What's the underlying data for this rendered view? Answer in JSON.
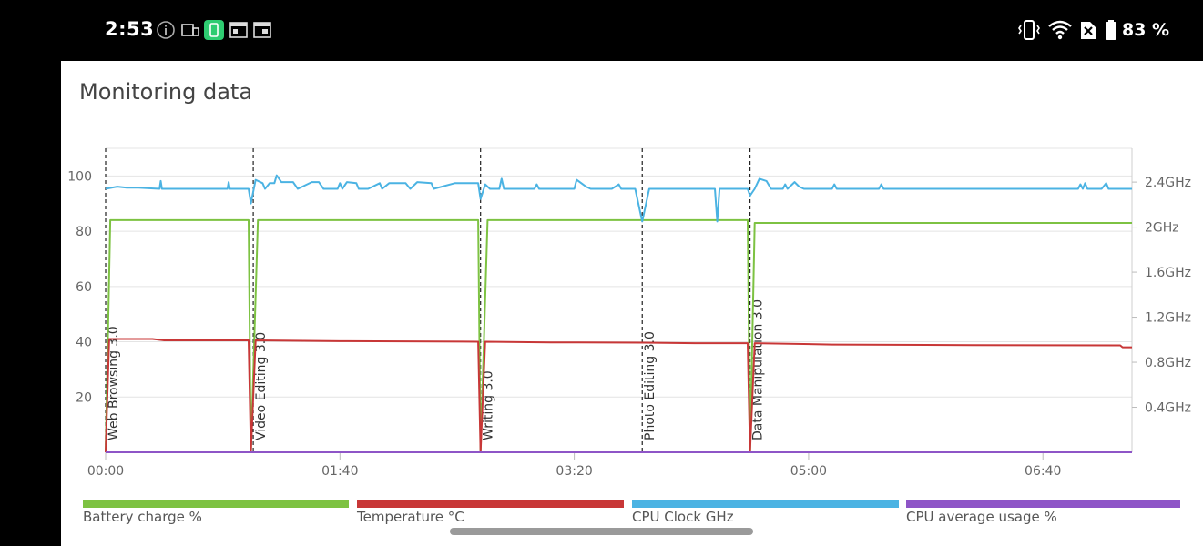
{
  "status_bar": {
    "time": "2:53",
    "battery_percent": "83 %",
    "notification_icons": [
      "info-icon",
      "cast-icon",
      "battery-app-icon",
      "calendar-icon",
      "calendar-icon"
    ],
    "system_icons": [
      "vibrate-icon",
      "wifi-icon",
      "no-sim-icon",
      "battery-icon"
    ]
  },
  "card": {
    "title": "Monitoring data"
  },
  "chart_data": {
    "type": "line",
    "title": "",
    "x_ticks": [
      "00:00",
      "01:40",
      "03:20",
      "05:00",
      "06:40"
    ],
    "x_range_minutes": [
      0,
      438
    ],
    "y_left_ticks": [
      "100",
      "80",
      "60",
      "40",
      "20"
    ],
    "y_left_range": [
      0,
      110
    ],
    "y_right_ticks": [
      "2.4GHz",
      "2GHz",
      "1.6GHz",
      "1.2GHz",
      "0.8GHz",
      "0.4GHz"
    ],
    "y_right_range": [
      0,
      2.7
    ],
    "grid": true,
    "legend_placement": "bottom",
    "events": [
      {
        "label": "Web Browsing 3.0",
        "x": 0
      },
      {
        "label": "Video Editing 3.0",
        "x": 63
      },
      {
        "label": "Writing 3.0",
        "x": 160
      },
      {
        "label": "Photo Editing 3.0",
        "x": 229
      },
      {
        "label": "Data Manipulation 3.0",
        "x": 275
      }
    ],
    "series": [
      {
        "name": "Battery charge %",
        "color": "#7dc242",
        "axis": "left",
        "points": [
          [
            0,
            0
          ],
          [
            2,
            84
          ],
          [
            61,
            84
          ],
          [
            62,
            0
          ],
          [
            65,
            84
          ],
          [
            159,
            84
          ],
          [
            160,
            0
          ],
          [
            163,
            84
          ],
          [
            274,
            84
          ],
          [
            275,
            0
          ],
          [
            277,
            83
          ],
          [
            438,
            83
          ]
        ]
      },
      {
        "name": "Temperature °C",
        "color": "#c83737",
        "axis": "left",
        "points": [
          [
            0,
            0
          ],
          [
            1.5,
            41
          ],
          [
            20,
            41
          ],
          [
            25,
            40.5
          ],
          [
            61,
            40.5
          ],
          [
            62,
            0
          ],
          [
            64,
            40.5
          ],
          [
            100,
            40.2
          ],
          [
            159,
            40
          ],
          [
            160,
            0
          ],
          [
            162,
            40
          ],
          [
            190,
            39.8
          ],
          [
            229,
            39.7
          ],
          [
            252,
            39.5
          ],
          [
            274,
            39.5
          ],
          [
            275,
            0
          ],
          [
            277,
            39.5
          ],
          [
            310,
            39
          ],
          [
            370,
            38.8
          ],
          [
            433,
            38.7
          ],
          [
            434,
            38
          ],
          [
            438,
            38
          ]
        ]
      },
      {
        "name": "CPU Clock GHz",
        "color": "#4bb3e3",
        "axis": "right",
        "points": [
          [
            0,
            2.34
          ],
          [
            5,
            2.36
          ],
          [
            9,
            2.35
          ],
          [
            14,
            2.35
          ],
          [
            23,
            2.34
          ],
          [
            23.5,
            2.41
          ],
          [
            24,
            2.34
          ],
          [
            52,
            2.34
          ],
          [
            52.5,
            2.4
          ],
          [
            53,
            2.34
          ],
          [
            61,
            2.34
          ],
          [
            62,
            2.21
          ],
          [
            64,
            2.42
          ],
          [
            67,
            2.39
          ],
          [
            68,
            2.34
          ],
          [
            70,
            2.39
          ],
          [
            72,
            2.39
          ],
          [
            73,
            2.46
          ],
          [
            75,
            2.4
          ],
          [
            80,
            2.4
          ],
          [
            82,
            2.34
          ],
          [
            88,
            2.4
          ],
          [
            91,
            2.4
          ],
          [
            93,
            2.34
          ],
          [
            99,
            2.34
          ],
          [
            100,
            2.39
          ],
          [
            101,
            2.34
          ],
          [
            103,
            2.4
          ],
          [
            107,
            2.39
          ],
          [
            108,
            2.34
          ],
          [
            112,
            2.34
          ],
          [
            117,
            2.39
          ],
          [
            118,
            2.34
          ],
          [
            121,
            2.39
          ],
          [
            128,
            2.39
          ],
          [
            130,
            2.34
          ],
          [
            133,
            2.4
          ],
          [
            139,
            2.39
          ],
          [
            140,
            2.34
          ],
          [
            149,
            2.39
          ],
          [
            159,
            2.39
          ],
          [
            160,
            2.25
          ],
          [
            162,
            2.38
          ],
          [
            164,
            2.34
          ],
          [
            168,
            2.34
          ],
          [
            169,
            2.43
          ],
          [
            170,
            2.34
          ],
          [
            183,
            2.34
          ],
          [
            184,
            2.38
          ],
          [
            185,
            2.34
          ],
          [
            200,
            2.34
          ],
          [
            201,
            2.42
          ],
          [
            205,
            2.36
          ],
          [
            207,
            2.34
          ],
          [
            216,
            2.34
          ],
          [
            219,
            2.38
          ],
          [
            220,
            2.34
          ],
          [
            226,
            2.34
          ],
          [
            229,
            2.05
          ],
          [
            232,
            2.34
          ],
          [
            260,
            2.34
          ],
          [
            261,
            2.05
          ],
          [
            262,
            2.34
          ],
          [
            272,
            2.34
          ],
          [
            274,
            2.34
          ],
          [
            275,
            2.28
          ],
          [
            277,
            2.34
          ],
          [
            279,
            2.43
          ],
          [
            282,
            2.41
          ],
          [
            284,
            2.34
          ],
          [
            289,
            2.34
          ],
          [
            290,
            2.38
          ],
          [
            291,
            2.34
          ],
          [
            294,
            2.4
          ],
          [
            296,
            2.36
          ],
          [
            298,
            2.34
          ],
          [
            310,
            2.34
          ],
          [
            311,
            2.38
          ],
          [
            312,
            2.34
          ],
          [
            330,
            2.34
          ],
          [
            331,
            2.38
          ],
          [
            332,
            2.34
          ],
          [
            415,
            2.34
          ],
          [
            416,
            2.38
          ],
          [
            417,
            2.34
          ],
          [
            418,
            2.39
          ],
          [
            419,
            2.34
          ],
          [
            425,
            2.34
          ],
          [
            427,
            2.39
          ],
          [
            428,
            2.34
          ],
          [
            438,
            2.34
          ]
        ]
      },
      {
        "name": "CPU average usage %",
        "color": "#8e55c7",
        "axis": "left",
        "points": [
          [
            0,
            0
          ],
          [
            438,
            0
          ]
        ]
      }
    ]
  }
}
